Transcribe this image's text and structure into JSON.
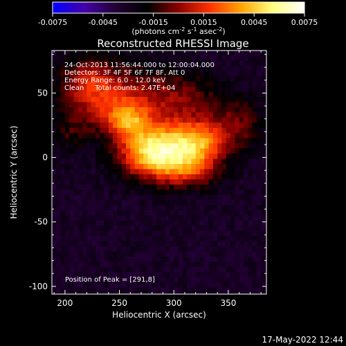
{
  "chart_data": {
    "type": "heatmap",
    "title": "Reconstructed RHESSI Image",
    "xlabel": "Heliocentric X (arcsec)",
    "ylabel": "Heliocentric Y (arcsec)",
    "xlim": [
      188,
      385
    ],
    "ylim": [
      -106,
      83
    ],
    "x_ticks": [
      200,
      250,
      300,
      350
    ],
    "y_ticks": [
      50,
      0,
      -50,
      -100
    ],
    "colorbar": {
      "range": [
        -0.0075,
        0.0075
      ],
      "ticks": [
        "-0.0075",
        "-0.0045",
        "-0.0015",
        "0.0015",
        "0.0045",
        "0.0075"
      ],
      "unit_prefix": "(photons cm",
      "unit_sup1": "-2",
      "unit_mid1": " s",
      "unit_sup2": "-1",
      "unit_mid2": " asec",
      "unit_sup3": "-2",
      "unit_suffix": ")",
      "colors": [
        "#0000ff",
        "#4400aa",
        "#220033",
        "#000000",
        "#8b0000",
        "#ff3300",
        "#ffa500",
        "#ffff80",
        "#ffffff"
      ]
    },
    "annotations": [
      "24-Oct-2013 11:56:44.000 to 12:00:04.000",
      "Detectors: 3F 4F 5F 6F 7F 8F, Att 0",
      "Energy Range: 6.0 - 12.0 keV",
      "Clean     Total counts: 2.47E+04"
    ],
    "peak_label": "Position of Peak = [291,8]",
    "peak": [
      291,
      8
    ],
    "sources": [
      {
        "x": 291,
        "y": 8,
        "sx": 22,
        "sy": 13,
        "amp": 0.0073
      },
      {
        "x": 258,
        "y": 28,
        "sx": 14,
        "sy": 10,
        "amp": 0.0045
      },
      {
        "x": 325,
        "y": 12,
        "sx": 16,
        "sy": 12,
        "amp": 0.005
      },
      {
        "x": 240,
        "y": 45,
        "sx": 26,
        "sy": 18,
        "amp": 0.0035
      },
      {
        "x": 300,
        "y": 45,
        "sx": 30,
        "sy": 15,
        "amp": 0.003
      },
      {
        "x": 310,
        "y": -10,
        "sx": 22,
        "sy": 10,
        "amp": 0.004
      },
      {
        "x": 270,
        "y": 0,
        "sx": 18,
        "sy": 12,
        "amp": 0.003
      },
      {
        "x": 360,
        "y": 25,
        "sx": 16,
        "sy": 14,
        "amp": 0.0025
      },
      {
        "x": 220,
        "y": 60,
        "sx": 18,
        "sy": 14,
        "amp": 0.0025
      },
      {
        "x": 205,
        "y": 20,
        "sx": 12,
        "sy": 12,
        "amp": 0.0015
      }
    ],
    "background_level": -0.0032
  },
  "timestamp": "17-May-2022 12:44"
}
